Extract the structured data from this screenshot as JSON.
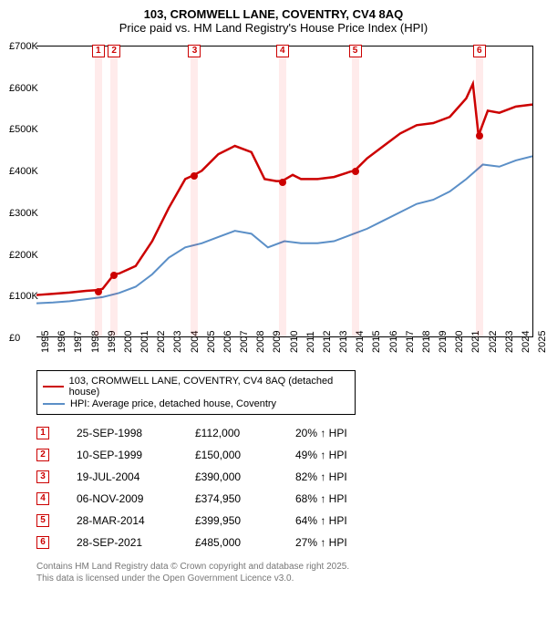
{
  "title_line1": "103, CROMWELL LANE, COVENTRY, CV4 8AQ",
  "title_line2": "Price paid vs. HM Land Registry's House Price Index (HPI)",
  "chart": {
    "type": "line",
    "ylim": [
      0,
      700000
    ],
    "ytick_step": 100000,
    "ytick_labels": [
      "£0",
      "£100K",
      "£200K",
      "£300K",
      "£400K",
      "£500K",
      "£600K",
      "£700K"
    ],
    "x_years": [
      1995,
      1996,
      1997,
      1998,
      1999,
      2000,
      2001,
      2002,
      2003,
      2004,
      2005,
      2006,
      2007,
      2008,
      2009,
      2010,
      2011,
      2012,
      2013,
      2014,
      2015,
      2016,
      2017,
      2018,
      2019,
      2020,
      2021,
      2022,
      2023,
      2024,
      2025
    ],
    "background_color": "#ffffff",
    "band_color": "rgba(255,0,0,0.08)",
    "series": [
      {
        "name": "price_paid",
        "color": "#cc0000",
        "line_width": 2.5,
        "points": [
          [
            1995.0,
            100000
          ],
          [
            1996.0,
            103000
          ],
          [
            1997.0,
            106000
          ],
          [
            1998.0,
            110000
          ],
          [
            1998.73,
            112000
          ],
          [
            1999.0,
            115000
          ],
          [
            1999.69,
            150000
          ],
          [
            2000.0,
            152000
          ],
          [
            2001.0,
            170000
          ],
          [
            2002.0,
            230000
          ],
          [
            2003.0,
            310000
          ],
          [
            2004.0,
            380000
          ],
          [
            2004.55,
            390000
          ],
          [
            2005.0,
            400000
          ],
          [
            2006.0,
            440000
          ],
          [
            2007.0,
            460000
          ],
          [
            2008.0,
            445000
          ],
          [
            2008.8,
            380000
          ],
          [
            2009.5,
            375000
          ],
          [
            2009.85,
            374950
          ],
          [
            2010.5,
            390000
          ],
          [
            2011.0,
            380000
          ],
          [
            2012.0,
            380000
          ],
          [
            2013.0,
            385000
          ],
          [
            2014.0,
            398000
          ],
          [
            2014.24,
            399950
          ],
          [
            2015.0,
            430000
          ],
          [
            2016.0,
            460000
          ],
          [
            2017.0,
            490000
          ],
          [
            2018.0,
            510000
          ],
          [
            2019.0,
            515000
          ],
          [
            2020.0,
            530000
          ],
          [
            2021.0,
            575000
          ],
          [
            2021.4,
            610000
          ],
          [
            2021.74,
            485000
          ],
          [
            2022.3,
            545000
          ],
          [
            2023.0,
            540000
          ],
          [
            2024.0,
            555000
          ],
          [
            2025.0,
            560000
          ]
        ]
      },
      {
        "name": "hpi",
        "color": "#5b8fc7",
        "line_width": 2,
        "points": [
          [
            1995.0,
            80000
          ],
          [
            1996.0,
            82000
          ],
          [
            1997.0,
            85000
          ],
          [
            1998.0,
            90000
          ],
          [
            1999.0,
            95000
          ],
          [
            2000.0,
            105000
          ],
          [
            2001.0,
            120000
          ],
          [
            2002.0,
            150000
          ],
          [
            2003.0,
            190000
          ],
          [
            2004.0,
            215000
          ],
          [
            2005.0,
            225000
          ],
          [
            2006.0,
            240000
          ],
          [
            2007.0,
            255000
          ],
          [
            2008.0,
            248000
          ],
          [
            2009.0,
            215000
          ],
          [
            2010.0,
            230000
          ],
          [
            2011.0,
            225000
          ],
          [
            2012.0,
            225000
          ],
          [
            2013.0,
            230000
          ],
          [
            2014.0,
            245000
          ],
          [
            2015.0,
            260000
          ],
          [
            2016.0,
            280000
          ],
          [
            2017.0,
            300000
          ],
          [
            2018.0,
            320000
          ],
          [
            2019.0,
            330000
          ],
          [
            2020.0,
            350000
          ],
          [
            2021.0,
            380000
          ],
          [
            2022.0,
            415000
          ],
          [
            2023.0,
            410000
          ],
          [
            2024.0,
            425000
          ],
          [
            2025.0,
            435000
          ]
        ]
      }
    ],
    "sale_bands": [
      {
        "x": 1998.73
      },
      {
        "x": 1999.69
      },
      {
        "x": 2004.55
      },
      {
        "x": 2009.85
      },
      {
        "x": 2014.24
      },
      {
        "x": 2021.74
      }
    ],
    "sale_markers": [
      {
        "n": "1",
        "x": 1998.73,
        "y": 112000
      },
      {
        "n": "2",
        "x": 1999.69,
        "y": 150000
      },
      {
        "n": "3",
        "x": 2004.55,
        "y": 390000
      },
      {
        "n": "4",
        "x": 2009.85,
        "y": 374950
      },
      {
        "n": "5",
        "x": 2014.24,
        "y": 399950
      },
      {
        "n": "6",
        "x": 2021.74,
        "y": 485000
      }
    ]
  },
  "legend": {
    "series1": {
      "label": "103, CROMWELL LANE, COVENTRY, CV4 8AQ (detached house)",
      "color": "#cc0000"
    },
    "series2": {
      "label": "HPI: Average price, detached house, Coventry",
      "color": "#5b8fc7"
    }
  },
  "sales": [
    {
      "n": "1",
      "date": "25-SEP-1998",
      "price": "£112,000",
      "hpi": "20% ↑ HPI"
    },
    {
      "n": "2",
      "date": "10-SEP-1999",
      "price": "£150,000",
      "hpi": "49% ↑ HPI"
    },
    {
      "n": "3",
      "date": "19-JUL-2004",
      "price": "£390,000",
      "hpi": "82% ↑ HPI"
    },
    {
      "n": "4",
      "date": "06-NOV-2009",
      "price": "£374,950",
      "hpi": "68% ↑ HPI"
    },
    {
      "n": "5",
      "date": "28-MAR-2014",
      "price": "£399,950",
      "hpi": "64% ↑ HPI"
    },
    {
      "n": "6",
      "date": "28-SEP-2021",
      "price": "£485,000",
      "hpi": "27% ↑ HPI"
    }
  ],
  "footer_line1": "Contains HM Land Registry data © Crown copyright and database right 2025.",
  "footer_line2": "This data is licensed under the Open Government Licence v3.0."
}
